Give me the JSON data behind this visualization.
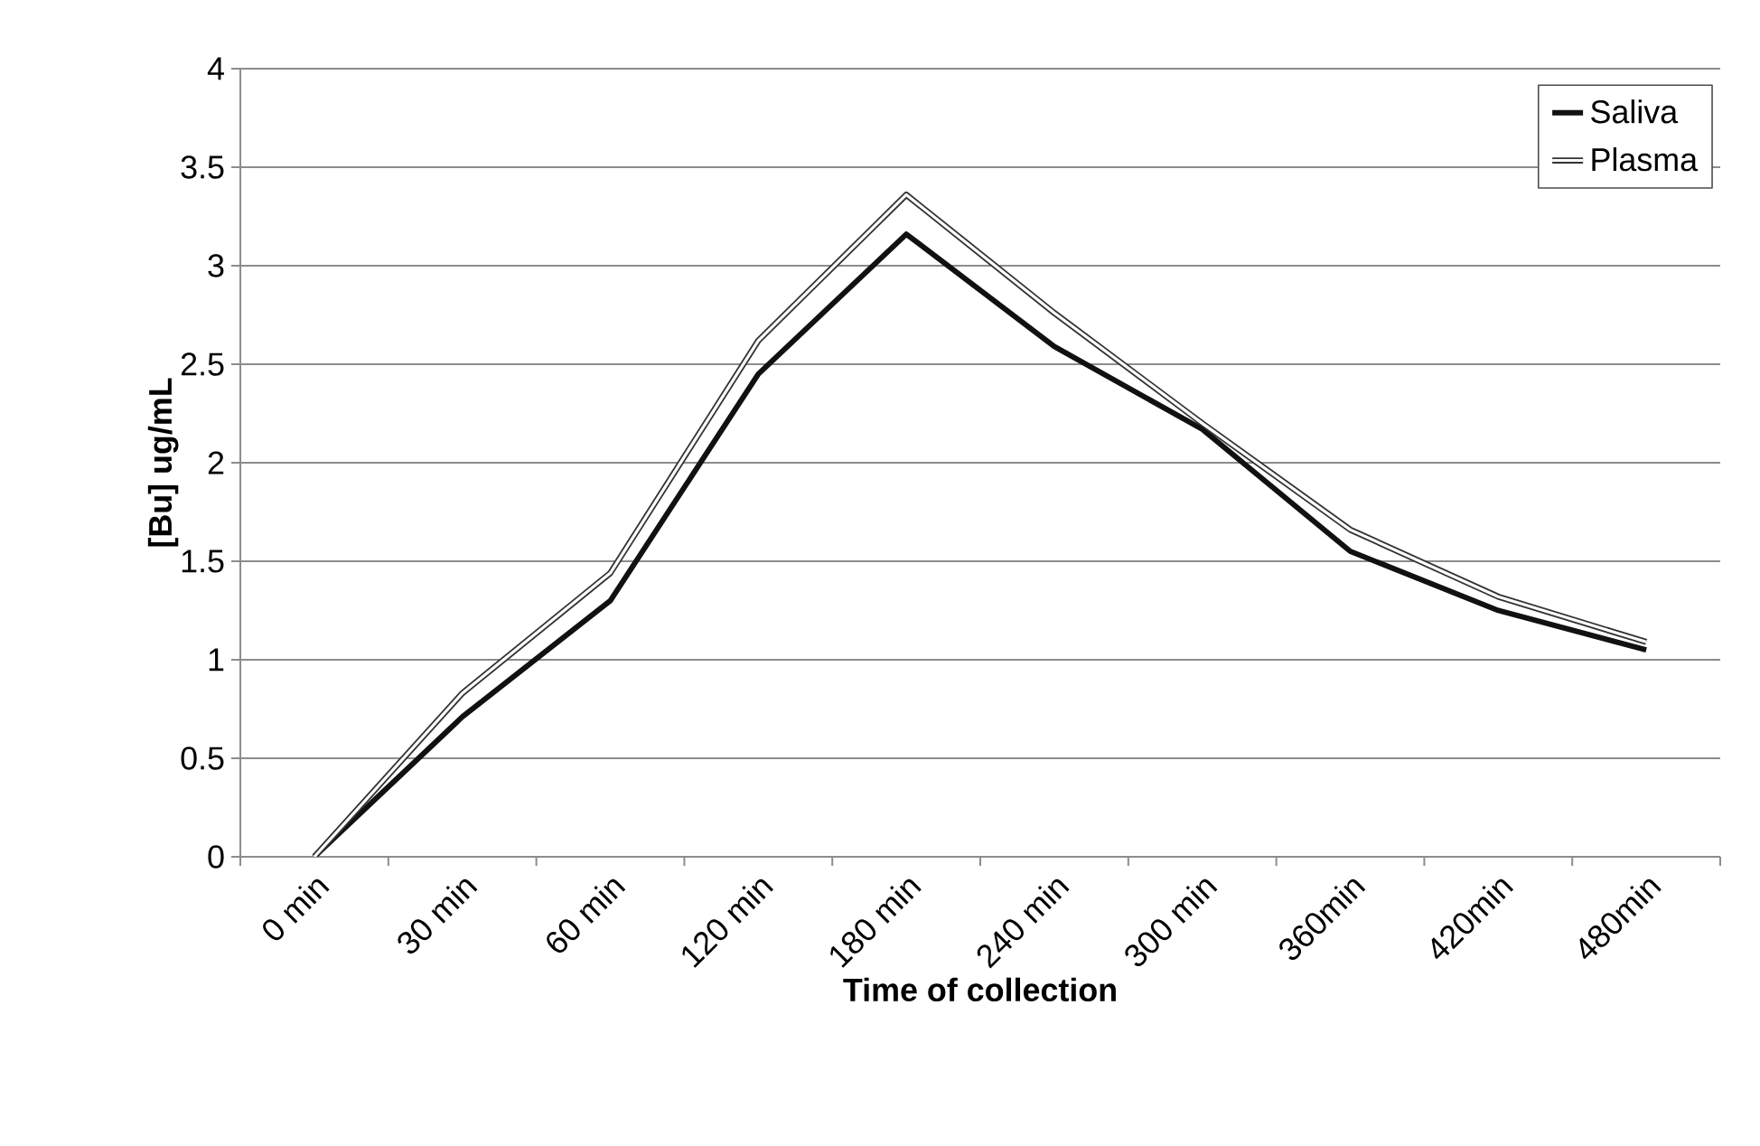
{
  "chart_data": {
    "type": "line",
    "xlabel": "Time of collection",
    "ylabel": "[Bu] ug/mL",
    "categories": [
      "0 min",
      "30 min",
      "60 min",
      "120 min",
      "180 min",
      "240 min",
      "300 min",
      "360min",
      "420min",
      "480min"
    ],
    "series": [
      {
        "name": "Saliva",
        "color": "#111111",
        "values": [
          0,
          0.71,
          1.3,
          2.45,
          3.16,
          2.59,
          2.17,
          1.55,
          1.25,
          1.05
        ]
      },
      {
        "name": "Plasma",
        "color": "#333333",
        "values": [
          0,
          0.83,
          1.44,
          2.62,
          3.36,
          2.76,
          2.2,
          1.66,
          1.32,
          1.09
        ]
      }
    ],
    "ylim": [
      0,
      4
    ],
    "yticks": [
      0,
      0.5,
      1,
      1.5,
      2,
      2.5,
      3,
      3.5,
      4
    ],
    "grid": "y",
    "legend": "top right",
    "marker": "none",
    "line_style": "solid"
  }
}
